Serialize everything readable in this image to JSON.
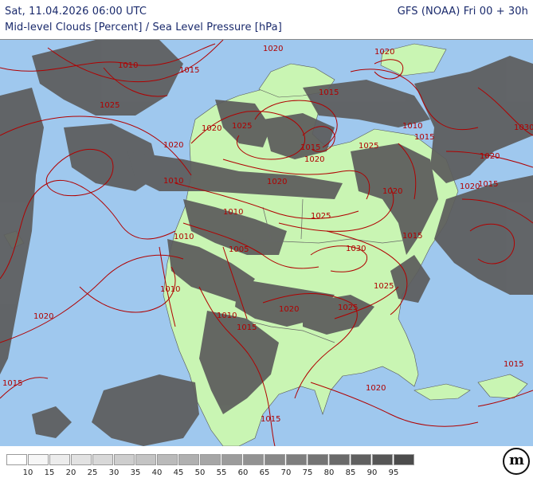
{
  "header": {
    "datetime": "Sat, 11.04.2026 06:00 UTC",
    "model": "GFS (NOAA) Fri 00 + 30h",
    "title": "Mid-level Clouds [Percent] / Sea Level Pressure [hPa]"
  },
  "map": {
    "colors": {
      "ocean": "#9fc8ee",
      "land": "#c9f5b3",
      "cloud": "#5c5c5c",
      "isobar": "#b00000",
      "border": "#666666"
    },
    "isobar_labels": [
      "1020",
      "1020",
      "1010",
      "1015",
      "1025",
      "1020",
      "1015",
      "1025",
      "1015",
      "1020",
      "1020",
      "1010",
      "1030",
      "1025",
      "1020",
      "1015",
      "1020",
      "1010",
      "1025",
      "1015",
      "1010",
      "1020",
      "1010",
      "1005",
      "1030",
      "1025",
      "1010",
      "1020",
      "1025",
      "1010",
      "1015",
      "1015",
      "1020",
      "1015",
      "1015",
      "1015",
      "1020",
      "1020"
    ]
  },
  "legend": {
    "levels": [
      "10",
      "15",
      "20",
      "25",
      "30",
      "35",
      "40",
      "45",
      "50",
      "55",
      "60",
      "65",
      "70",
      "75",
      "80",
      "85",
      "90",
      "95"
    ],
    "colors": [
      "#ffffff",
      "#f6f6f6",
      "#ececec",
      "#e2e2e2",
      "#d8d8d8",
      "#cecece",
      "#c4c4c4",
      "#bababa",
      "#b0b0b0",
      "#a6a6a6",
      "#9c9c9c",
      "#929292",
      "#888888",
      "#7e7e7e",
      "#747474",
      "#6a6a6a",
      "#606060",
      "#565656",
      "#4c4c4c"
    ]
  },
  "logo": {
    "text": "m"
  }
}
